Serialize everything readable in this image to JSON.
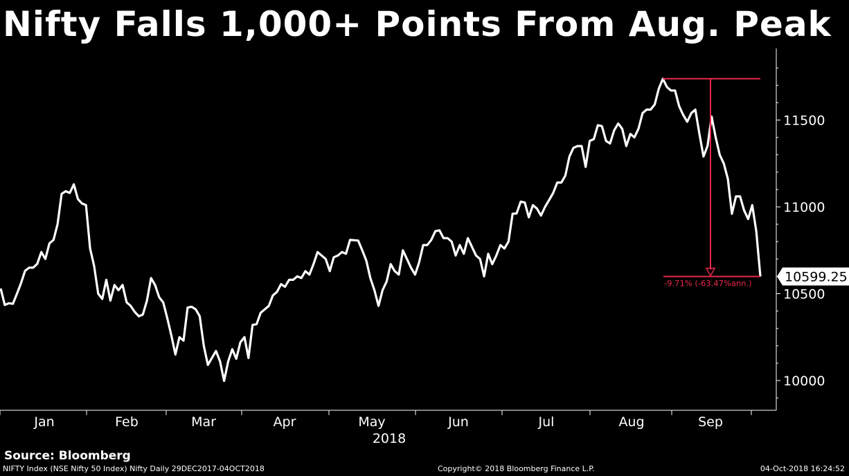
{
  "title": "Nifty Falls 1,000+ Points From Aug. Peak",
  "source": "Source: Bloomberg",
  "footer": {
    "left": "NIFTY Index (NSE Nifty 50 Index) Nifty  Daily 29DEC2017-04OCT2018",
    "center": "Copyright© 2018 Bloomberg Finance L.P.",
    "right": "04-Oct-2018 16:24:52"
  },
  "colors": {
    "background": "#000000",
    "line": "#ffffff",
    "annotation": "#e8294a"
  },
  "chart_data": {
    "type": "line",
    "x_tick_labels": [
      "Jan",
      "Feb",
      "Mar",
      "Apr",
      "May",
      "Jun",
      "Jul",
      "Aug",
      "Sep"
    ],
    "x_year_label": "2018",
    "y_ticks": [
      10000,
      10500,
      11000,
      11500
    ],
    "ylim": [
      9830,
      11900
    ],
    "grid": false,
    "y_axis_side": "right",
    "last_value_label": "10599.25",
    "annotation": {
      "label": "-9.71% (-63.47%ann.)",
      "from": 11738,
      "to": 10599.25
    },
    "series": [
      {
        "values": [
          10530,
          10435,
          10445,
          10442,
          10500,
          10560,
          10632,
          10650,
          10650,
          10672,
          10740,
          10700,
          10790,
          10810,
          10900,
          11075,
          11090,
          11080,
          11130,
          11045,
          11020,
          11010,
          10760,
          10660,
          10500,
          10470,
          10580,
          10460,
          10550,
          10520,
          10550,
          10450,
          10430,
          10395,
          10370,
          10380,
          10460,
          10590,
          10550,
          10480,
          10450,
          10360,
          10260,
          10150,
          10250,
          10230,
          10420,
          10425,
          10410,
          10370,
          10200,
          10090,
          10130,
          10170,
          10110,
          9998,
          10110,
          10180,
          10125,
          10220,
          10250,
          10130,
          10320,
          10325,
          10390,
          10410,
          10430,
          10490,
          10510,
          10555,
          10540,
          10580,
          10580,
          10600,
          10590,
          10630,
          10610,
          10670,
          10740,
          10720,
          10700,
          10630,
          10710,
          10720,
          10740,
          10730,
          10810,
          10808,
          10806,
          10750,
          10690,
          10590,
          10520,
          10430,
          10520,
          10570,
          10670,
          10630,
          10610,
          10750,
          10700,
          10650,
          10610,
          10680,
          10780,
          10780,
          10810,
          10860,
          10865,
          10820,
          10820,
          10800,
          10720,
          10780,
          10730,
          10820,
          10770,
          10720,
          10700,
          10600,
          10730,
          10670,
          10720,
          10780,
          10760,
          10800,
          10960,
          10962,
          11030,
          11025,
          10940,
          11010,
          10990,
          10950,
          11000,
          11040,
          11080,
          11140,
          11140,
          11180,
          11290,
          11340,
          11350,
          11350,
          11230,
          11380,
          11390,
          11470,
          11465,
          11380,
          11365,
          11440,
          11480,
          11450,
          11350,
          11420,
          11400,
          11450,
          11540,
          11560,
          11560,
          11590,
          11680,
          11738,
          11690,
          11670,
          11670,
          11580,
          11530,
          11490,
          11540,
          11560,
          11420,
          11290,
          11350,
          11520,
          11400,
          11300,
          11250,
          11160,
          10960,
          11060,
          11060,
          10980,
          10930,
          11010,
          10860,
          10599.25
        ]
      }
    ]
  }
}
